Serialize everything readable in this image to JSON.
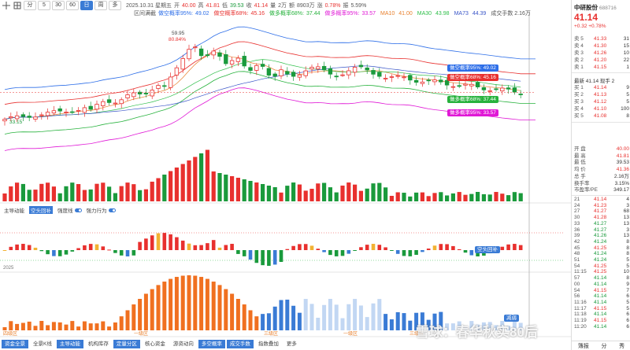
{
  "toolbar": {
    "buttons": [
      "分",
      "5",
      "30",
      "60",
      "日",
      "周",
      "多"
    ],
    "active_index": 4
  },
  "quote_line": {
    "date": "2025.10.31 星期五",
    "open_label": "开",
    "open": "40.00",
    "high_label": "高",
    "high": "41.81",
    "low_label": "低",
    "low": "39.53",
    "close_label": "收",
    "close": "41.14",
    "volume_label": "量",
    "volume": "2万",
    "amount_label": "额",
    "amount": "8903万",
    "change_label": "涨",
    "change": "0.78%",
    "amp_label": "振",
    "amp": "5.59%"
  },
  "legend": {
    "range_label": "区间满截",
    "bands": [
      {
        "label": "做空概率95%:",
        "value": "49.02",
        "color": "#2d6ee8"
      },
      {
        "label": "做空概率68%:",
        "value": "45.16",
        "color": "#e8302e"
      },
      {
        "label": "做多概率68%:",
        "value": "37.44",
        "color": "#27b23d"
      },
      {
        "label": "做多概率95%:",
        "value": "33.57",
        "color": "#e018d6"
      }
    ],
    "ma": [
      {
        "label": "MA10",
        "value": "41.00",
        "color": "#e8802e"
      },
      {
        "label": "MA30",
        "value": "43.98",
        "color": "#2fbf4a"
      },
      {
        "label": "MA73",
        "value": "44.39",
        "color": "#3a56c8"
      }
    ],
    "amount_text": "成交手数 2.16万"
  },
  "chart_labels": {
    "peak_price": "59.95",
    "peak_pct": "80.84%",
    "low_price": "33.15",
    "overlay_labels": [
      {
        "text": "做空概率95%: 49.02",
        "color": "#2d6ee8"
      },
      {
        "text": "做空概率68%: 45.16",
        "color": "#e8302e"
      },
      {
        "text": "做多概率68%: 37.44",
        "color": "#27b23d"
      },
      {
        "text": "做多概率95%: 33.57",
        "color": "#e018d6"
      }
    ],
    "sub_label": "空头回补",
    "bottom_label": "减弱"
  },
  "indicator_bar": {
    "items": [
      "主导动能",
      "空头回补",
      "强度线",
      "强力行为"
    ]
  },
  "axis_labels": {
    "start_date": "2025",
    "regions": [
      "四级区",
      "一级区",
      "三级区",
      "一级区",
      "三级区"
    ]
  },
  "bottom_tabs": {
    "items": [
      "资金全景",
      "全景K线",
      "主导动能",
      "机构库存",
      "定量分区",
      "核心资金",
      "游资动向",
      "多空概率",
      "成交手数",
      "指数叠加",
      "更多"
    ],
    "active": [
      0,
      2,
      4,
      7,
      8
    ]
  },
  "right_panel": {
    "name": "中研股份",
    "code": "688716",
    "price": "41.14",
    "change": "+0.32",
    "change_pct": "+0.78%",
    "sells": [
      {
        "label": "卖 5",
        "price": "41.33",
        "vol": "31"
      },
      {
        "label": "卖 4",
        "price": "41.30",
        "vol": "15"
      },
      {
        "label": "卖 3",
        "price": "41.26",
        "vol": "10"
      },
      {
        "label": "卖 2",
        "price": "41.20",
        "vol": "22"
      },
      {
        "label": "卖 1",
        "price": "41.15",
        "vol": "1"
      }
    ],
    "last_line": "最新 41.14  现手 2",
    "buys": [
      {
        "label": "买 1",
        "price": "41.14",
        "vol": "9"
      },
      {
        "label": "买 2",
        "price": "41.13",
        "vol": "5"
      },
      {
        "label": "买 3",
        "price": "41.12",
        "vol": "5"
      },
      {
        "label": "买 4",
        "price": "41.10",
        "vol": "100"
      },
      {
        "label": "买 5",
        "price": "41.08",
        "vol": "8"
      }
    ],
    "stats": [
      {
        "label": "开 盘",
        "value": "40.00",
        "red": true
      },
      {
        "label": "最 高",
        "value": "41.81",
        "red": true
      },
      {
        "label": "最 低",
        "value": "39.53",
        "red": false
      },
      {
        "label": "均 价",
        "value": "41.36",
        "red": true
      },
      {
        "label": "总 手",
        "value": "2.16万",
        "red": false
      },
      {
        "label": "换手率",
        "value": "3.15%",
        "red": false
      },
      {
        "label": "市盈率/PE",
        "value": "349.17",
        "red": false
      }
    ],
    "ticks": [
      {
        "t": "21",
        "p": "41.14",
        "v": "4",
        "red": true
      },
      {
        "t": "24",
        "p": "41.23",
        "v": "3",
        "red": true
      },
      {
        "t": "27",
        "p": "41.27",
        "v": "68",
        "red": true
      },
      {
        "t": "30",
        "p": "41.28",
        "v": "13",
        "red": true
      },
      {
        "t": "33",
        "p": "41.27",
        "v": "13",
        "red": false
      },
      {
        "t": "36",
        "p": "41.27",
        "v": "3",
        "red": false
      },
      {
        "t": "39",
        "p": "41.26",
        "v": "13",
        "red": false
      },
      {
        "t": "42",
        "p": "41.24",
        "v": "8",
        "red": false
      },
      {
        "t": "45",
        "p": "41.25",
        "v": "8",
        "red": true
      },
      {
        "t": "48",
        "p": "41.24",
        "v": "8",
        "red": false
      },
      {
        "t": "51",
        "p": "41.24",
        "v": "5",
        "red": false
      },
      {
        "t": "54",
        "p": "41.25",
        "v": "5",
        "red": true
      },
      {
        "t": "11:15",
        "p": "41.25",
        "v": "10",
        "red": true
      },
      {
        "t": "57",
        "p": "41.14",
        "v": "8",
        "red": false
      },
      {
        "t": "00",
        "p": "41.14",
        "v": "9",
        "red": false
      },
      {
        "t": "54",
        "p": "41.15",
        "v": "7",
        "red": true
      },
      {
        "t": "56",
        "p": "41.14",
        "v": "6",
        "red": false
      },
      {
        "t": "11:16",
        "p": "41.14",
        "v": "5",
        "red": false
      },
      {
        "t": "11:17",
        "p": "41.15",
        "v": "5",
        "red": true
      },
      {
        "t": "11:18",
        "p": "41.14",
        "v": "6",
        "red": false
      },
      {
        "t": "11:19",
        "p": "41.15",
        "v": "6",
        "red": true
      },
      {
        "t": "11:20",
        "p": "41.14",
        "v": "6",
        "red": false
      }
    ],
    "tabs": [
      "簿报",
      "分",
      "秀"
    ]
  },
  "watermark": "雪球：春华秋实80后"
}
